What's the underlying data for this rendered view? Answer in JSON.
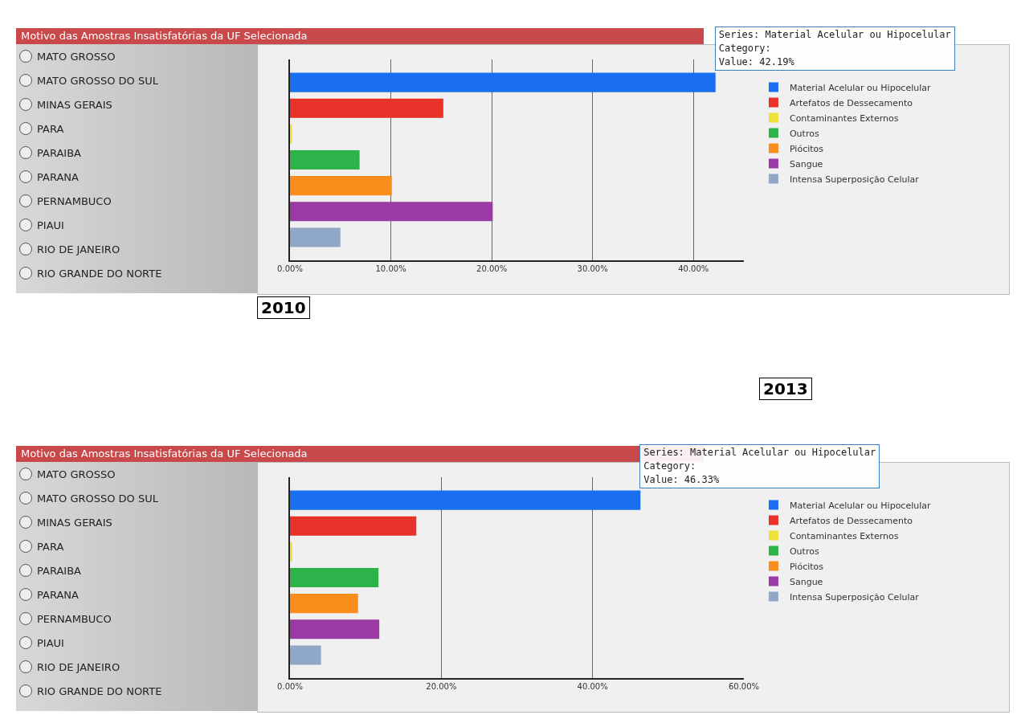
{
  "chart_data": [
    {
      "type": "bar",
      "orientation": "horizontal",
      "title": "Motivo das Amostras Insatisfatórias da UF Selecionada",
      "subtitle": "2010",
      "categories": [
        null
      ],
      "series": [
        {
          "name": "Material Acelular ou Hipocelular",
          "color": "#1a6ef0",
          "values": [
            42.19
          ]
        },
        {
          "name": "Artefatos de Dessecamento",
          "color": "#e8322a",
          "values": [
            15.2
          ]
        },
        {
          "name": "Contaminantes Externos",
          "color": "#f2e03a",
          "values": [
            0.2
          ]
        },
        {
          "name": "Outros",
          "color": "#2db34a",
          "values": [
            6.9
          ]
        },
        {
          "name": "Piócitos",
          "color": "#f98e1c",
          "values": [
            10.1
          ]
        },
        {
          "name": "Sangue",
          "color": "#9b3aa5",
          "values": [
            20.1
          ]
        },
        {
          "name": "Intensa Superposição Celular",
          "color": "#8fa8c8",
          "values": [
            5.0
          ]
        }
      ],
      "xlim": [
        0,
        45
      ],
      "xticks": [
        {
          "value": 0,
          "label": "0.00%"
        },
        {
          "value": 10,
          "label": "10.00%"
        },
        {
          "value": 20,
          "label": "20.00%"
        },
        {
          "value": 30,
          "label": "30.00%"
        },
        {
          "value": 40,
          "label": "40.00%"
        }
      ],
      "grid": "x",
      "legend": "right",
      "annotations": [
        "Series: Material Acelular ou Hipocelular\nCategory:\nValue: 42.19%",
        "MATO GROSSO",
        "MATO GROSSO DO SUL",
        "MINAS GERAIS",
        "PARA",
        "PARAIBA",
        "PARANA",
        "PERNAMBUCO",
        "PIAUI",
        "RIO DE JANEIRO",
        "RIO GRANDE DO NORTE"
      ]
    },
    {
      "type": "bar",
      "orientation": "horizontal",
      "title": "Motivo das Amostras Insatisfatórias da UF Selecionada",
      "subtitle": "2013",
      "categories": [
        null
      ],
      "series": [
        {
          "name": "Material Acelular ou Hipocelular",
          "color": "#1a6ef0",
          "values": [
            46.33
          ]
        },
        {
          "name": "Artefatos de Dessecamento",
          "color": "#e8322a",
          "values": [
            16.7
          ]
        },
        {
          "name": "Contaminantes Externos",
          "color": "#f2e03a",
          "values": [
            0.3
          ]
        },
        {
          "name": "Outros",
          "color": "#2db34a",
          "values": [
            11.7
          ]
        },
        {
          "name": "Piócitos",
          "color": "#f98e1c",
          "values": [
            9.0
          ]
        },
        {
          "name": "Sangue",
          "color": "#9b3aa5",
          "values": [
            11.8
          ]
        },
        {
          "name": "Intensa Superposição Celular",
          "color": "#8fa8c8",
          "values": [
            4.1
          ]
        }
      ],
      "xlim": [
        0,
        60
      ],
      "xticks": [
        {
          "value": 0,
          "label": "0.00%"
        },
        {
          "value": 20,
          "label": "20.00%"
        },
        {
          "value": 40,
          "label": "40.00%"
        },
        {
          "value": 60,
          "label": "60.00%"
        }
      ],
      "grid": "x",
      "legend": "right",
      "annotations": [
        "Series: Material Acelular ou Hipocelular\nCategory:\nValue: 46.33%",
        "MATO GROSSO",
        "MATO GROSSO DO SUL",
        "MINAS GERAIS",
        "PARA",
        "PARAIBA",
        "PARANA",
        "PERNAMBUCO",
        "PIAUI",
        "RIO DE JANEIRO",
        "RIO GRANDE DO NORTE"
      ]
    }
  ]
}
